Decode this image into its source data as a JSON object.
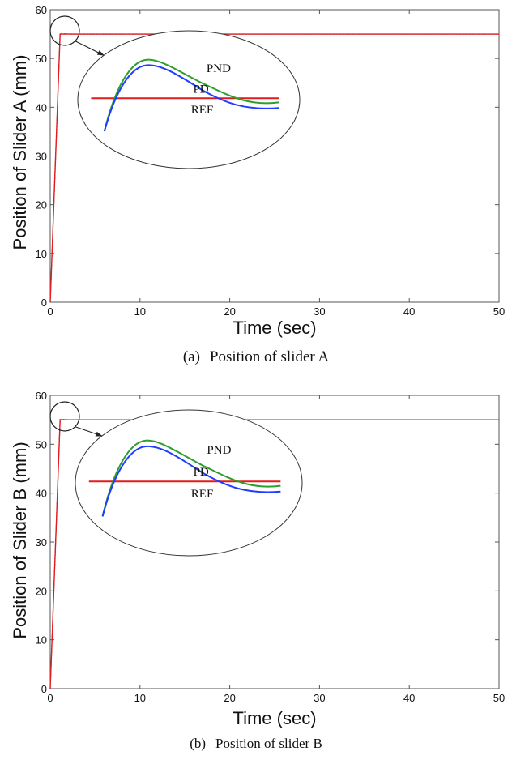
{
  "chart_data": [
    {
      "type": "line",
      "caption_tag": "(a)",
      "caption_text": "Position of slider A",
      "xlabel": "Time (sec)",
      "ylabel": "Position of Slider A (mm)",
      "xlim": [
        0,
        50
      ],
      "ylim": [
        0,
        60
      ],
      "xticks": [
        "0",
        "10",
        "20",
        "30",
        "40",
        "50"
      ],
      "yticks": [
        "0",
        "10",
        "20",
        "30",
        "40",
        "50",
        "60"
      ],
      "grid": false,
      "series": [
        {
          "name": "REF",
          "color": "#e41a1c",
          "x": [
            0,
            1.1,
            50
          ],
          "y": [
            0,
            55,
            55
          ]
        },
        {
          "name": "PD",
          "color": "#1f3cff",
          "x": [
            0,
            1.1,
            1.3,
            1.6,
            2.0,
            3.0,
            5.0,
            10.0,
            50
          ],
          "y": [
            0,
            55.05,
            55.08,
            55.04,
            55.01,
            54.99,
            54.98,
            55.0,
            55
          ]
        },
        {
          "name": "PND",
          "color": "#2e9e2e",
          "x": [
            0,
            1.1,
            1.3,
            1.6,
            2.0,
            3.0,
            5.0,
            10.0,
            50
          ],
          "y": [
            0,
            55.06,
            55.1,
            55.06,
            55.03,
            55.01,
            55.0,
            55.0,
            55
          ]
        }
      ],
      "zoom_labels": {
        "pnd": "PND",
        "pd": "PD",
        "ref": "REF"
      }
    },
    {
      "type": "line",
      "caption_tag": "(b)",
      "caption_text": "Position of slider B",
      "xlabel": "Time (sec)",
      "ylabel": "Position of Slider B (mm)",
      "xlim": [
        0,
        50
      ],
      "ylim": [
        0,
        60
      ],
      "xticks": [
        "0",
        "10",
        "20",
        "30",
        "40",
        "50"
      ],
      "yticks": [
        "0",
        "10",
        "20",
        "30",
        "40",
        "50",
        "60"
      ],
      "grid": false,
      "series": [
        {
          "name": "REF",
          "color": "#e41a1c",
          "x": [
            0,
            1.1,
            50
          ],
          "y": [
            0,
            55,
            55
          ]
        },
        {
          "name": "PD",
          "color": "#1f3cff",
          "x": [
            0,
            1.1,
            1.3,
            1.6,
            2.0,
            3.0,
            5.0,
            10.0,
            50
          ],
          "y": [
            0,
            55.05,
            55.08,
            55.04,
            55.01,
            54.99,
            54.98,
            55.0,
            55
          ]
        },
        {
          "name": "PND",
          "color": "#2e9e2e",
          "x": [
            0,
            1.1,
            1.3,
            1.6,
            2.0,
            3.0,
            5.0,
            10.0,
            50
          ],
          "y": [
            0,
            55.06,
            55.1,
            55.06,
            55.03,
            55.01,
            55.0,
            55.0,
            55
          ]
        }
      ],
      "zoom_labels": {
        "pnd": "PND",
        "pd": "PD",
        "ref": "REF"
      }
    }
  ]
}
